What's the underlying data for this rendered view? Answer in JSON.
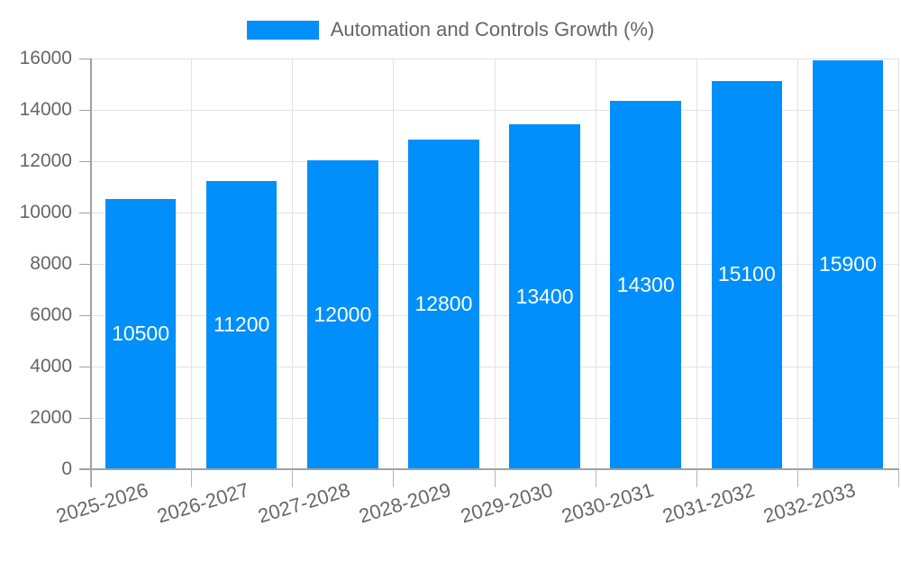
{
  "chart_data": {
    "type": "bar",
    "title": "Automation and Controls Growth (%)",
    "legend_position": "top",
    "categories": [
      "2025-2026",
      "2026-2027",
      "2027-2028",
      "2028-2029",
      "2029-2030",
      "2030-2031",
      "2031-2032",
      "2032-2033"
    ],
    "series": [
      {
        "name": "Automation and Controls Growth (%)",
        "values": [
          10500,
          11200,
          12000,
          12800,
          13400,
          14300,
          15100,
          15900
        ]
      }
    ],
    "values": [
      10500,
      11200,
      12000,
      12800,
      13400,
      14300,
      15100,
      15900
    ],
    "value_labels": [
      "10500",
      "11200",
      "12000",
      "12800",
      "13400",
      "14300",
      "15100",
      "15900"
    ],
    "xlabel": "",
    "ylabel": "",
    "ylim": [
      0,
      16000
    ],
    "ytick_step": 2000,
    "ytick_labels": [
      "0",
      "2000",
      "4000",
      "6000",
      "8000",
      "10000",
      "12000",
      "14000",
      "16000"
    ],
    "grid": true,
    "bar_color": "#008FFB",
    "value_label_color": "#ffffff",
    "axis_label_color": "#666666",
    "gridline_color": "#e2e2e2",
    "axis_line_color": "#a0a0a0"
  }
}
